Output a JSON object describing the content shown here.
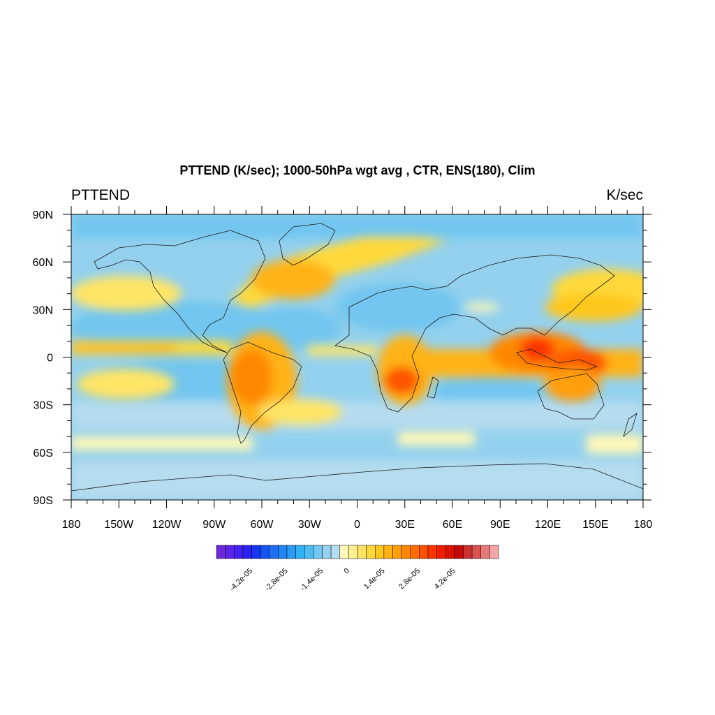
{
  "title": "PTTEND (K/sec); 1000-50hPa wgt avg , CTR, ENS(180), Clim",
  "left_label": "PTTEND",
  "right_label": "K/sec",
  "map": {
    "projection": "cylindrical-equidistant",
    "lon_range": [
      -180,
      180
    ],
    "lat_range": [
      -90,
      90
    ],
    "background_value": "-1.0e-05",
    "lon_ticks": [
      {
        "value": -180,
        "label": "180"
      },
      {
        "value": -150,
        "label": "150W"
      },
      {
        "value": -120,
        "label": "120W"
      },
      {
        "value": -90,
        "label": "90W"
      },
      {
        "value": -60,
        "label": "60W"
      },
      {
        "value": -30,
        "label": "30W"
      },
      {
        "value": 0,
        "label": "0"
      },
      {
        "value": 30,
        "label": "30E"
      },
      {
        "value": 60,
        "label": "60E"
      },
      {
        "value": 90,
        "label": "90E"
      },
      {
        "value": 120,
        "label": "120E"
      },
      {
        "value": 150,
        "label": "150E"
      },
      {
        "value": 180,
        "label": "180"
      }
    ],
    "lat_ticks": [
      {
        "value": 90,
        "label": "90N"
      },
      {
        "value": 60,
        "label": "60N"
      },
      {
        "value": 30,
        "label": "30N"
      },
      {
        "value": 0,
        "label": "0"
      },
      {
        "value": -30,
        "label": "30S"
      },
      {
        "value": -60,
        "label": "60S"
      },
      {
        "value": -90,
        "label": "90S"
      }
    ],
    "coast_color": "#1a1a1a"
  },
  "colorbar": {
    "colors": [
      "#6d28d9",
      "#5a25e8",
      "#4422f2",
      "#2a22f4",
      "#1537f2",
      "#1554f0",
      "#1e6ef2",
      "#2386f4",
      "#2a9ef6",
      "#32b1f5",
      "#4fbdf2",
      "#72c6ef",
      "#94d1ee",
      "#b5dcef",
      "#fff8b8",
      "#ffef8e",
      "#ffe566",
      "#ffd93b",
      "#ffc71e",
      "#ffb312",
      "#ff9f0a",
      "#ff8705",
      "#ff6d02",
      "#ff5200",
      "#ff3500",
      "#f01e00",
      "#d91200",
      "#c40a0a",
      "#cc3030",
      "#d95050",
      "#e67878",
      "#f2a5a5"
    ],
    "labels": [
      {
        "index": 3,
        "text": "-4.2e-05"
      },
      {
        "index": 7,
        "text": "-2.8e-05"
      },
      {
        "index": 11,
        "text": "-1.4e-05"
      },
      {
        "index": 14,
        "text": "0"
      },
      {
        "index": 18,
        "text": "1.4e-05"
      },
      {
        "index": 22,
        "text": "2.8e-05"
      },
      {
        "index": 26,
        "text": "4.2e-05"
      }
    ]
  },
  "field_regions": [
    {
      "name": "north-pacific-storm-track",
      "lon": [
        -180,
        -140
      ],
      "lat": [
        30,
        45
      ],
      "value": "1.4e-05"
    },
    {
      "name": "north-atlantic-storm-track",
      "lon": [
        -60,
        10
      ],
      "lat": [
        35,
        70
      ],
      "value": "2.1e-05"
    },
    {
      "name": "itcz-pacific",
      "lon": [
        -180,
        -80
      ],
      "lat": [
        3,
        12
      ],
      "value": "1.4e-05"
    },
    {
      "name": "south-america-convection",
      "lon": [
        -80,
        -40
      ],
      "lat": [
        -35,
        5
      ],
      "value": "3.5e-05"
    },
    {
      "name": "southern-africa-convection",
      "lon": [
        15,
        40
      ],
      "lat": [
        -30,
        5
      ],
      "value": "3.5e-05"
    },
    {
      "name": "maritime-continent",
      "lon": [
        90,
        160
      ],
      "lat": [
        -20,
        15
      ],
      "value": "4.2e-05"
    },
    {
      "name": "indian-ocean-band",
      "lon": [
        40,
        100
      ],
      "lat": [
        -15,
        5
      ],
      "value": "1.4e-05"
    },
    {
      "name": "southern-ocean-band",
      "lon": [
        -180,
        180
      ],
      "lat": [
        -60,
        -50
      ],
      "value": "0.7e-05"
    }
  ]
}
